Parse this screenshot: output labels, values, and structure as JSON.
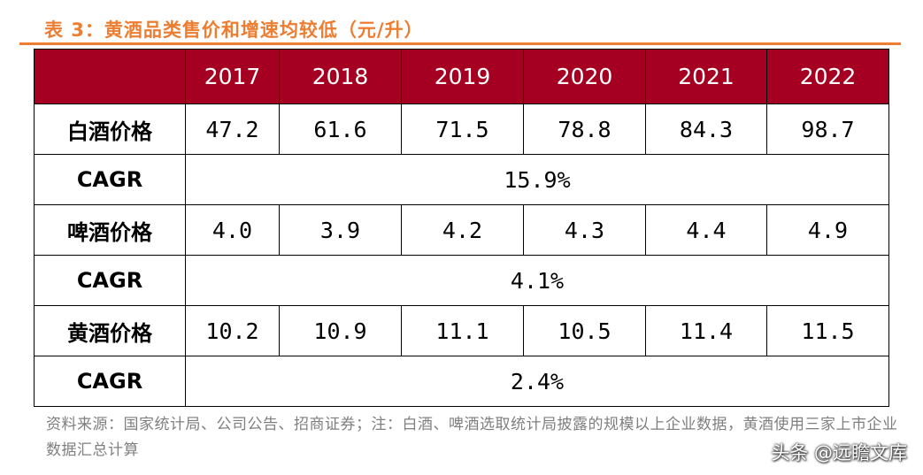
{
  "title": "表 3：黄酒品类售价和增速均较低（元/升）",
  "colors": {
    "accent": "#ED7D31",
    "header_bg": "#A50021",
    "header_text": "#FFFFFF",
    "source_text": "#7F7F7F"
  },
  "table": {
    "years": [
      "2017",
      "2018",
      "2019",
      "2020",
      "2021",
      "2022"
    ],
    "groups": [
      {
        "label": "白酒价格",
        "values": [
          "47.2",
          "61.6",
          "71.5",
          "78.8",
          "84.3",
          "98.7"
        ],
        "cagr_label": "CAGR",
        "cagr": "15.9%"
      },
      {
        "label": "啤酒价格",
        "values": [
          "4.0",
          "3.9",
          "4.2",
          "4.3",
          "4.4",
          "4.9"
        ],
        "cagr_label": "CAGR",
        "cagr": "4.1%"
      },
      {
        "label": "黄酒价格",
        "values": [
          "10.2",
          "10.9",
          "11.1",
          "10.5",
          "11.4",
          "11.5"
        ],
        "cagr_label": "CAGR",
        "cagr": "2.4%"
      }
    ]
  },
  "source": "资料来源：国家统计局、公司公告、招商证券；注：白酒、啤酒选取统计局披露的规模以上企业数据，黄酒使用三家上市企业数据汇总计算",
  "watermark": "头条 @远瞻文库"
}
